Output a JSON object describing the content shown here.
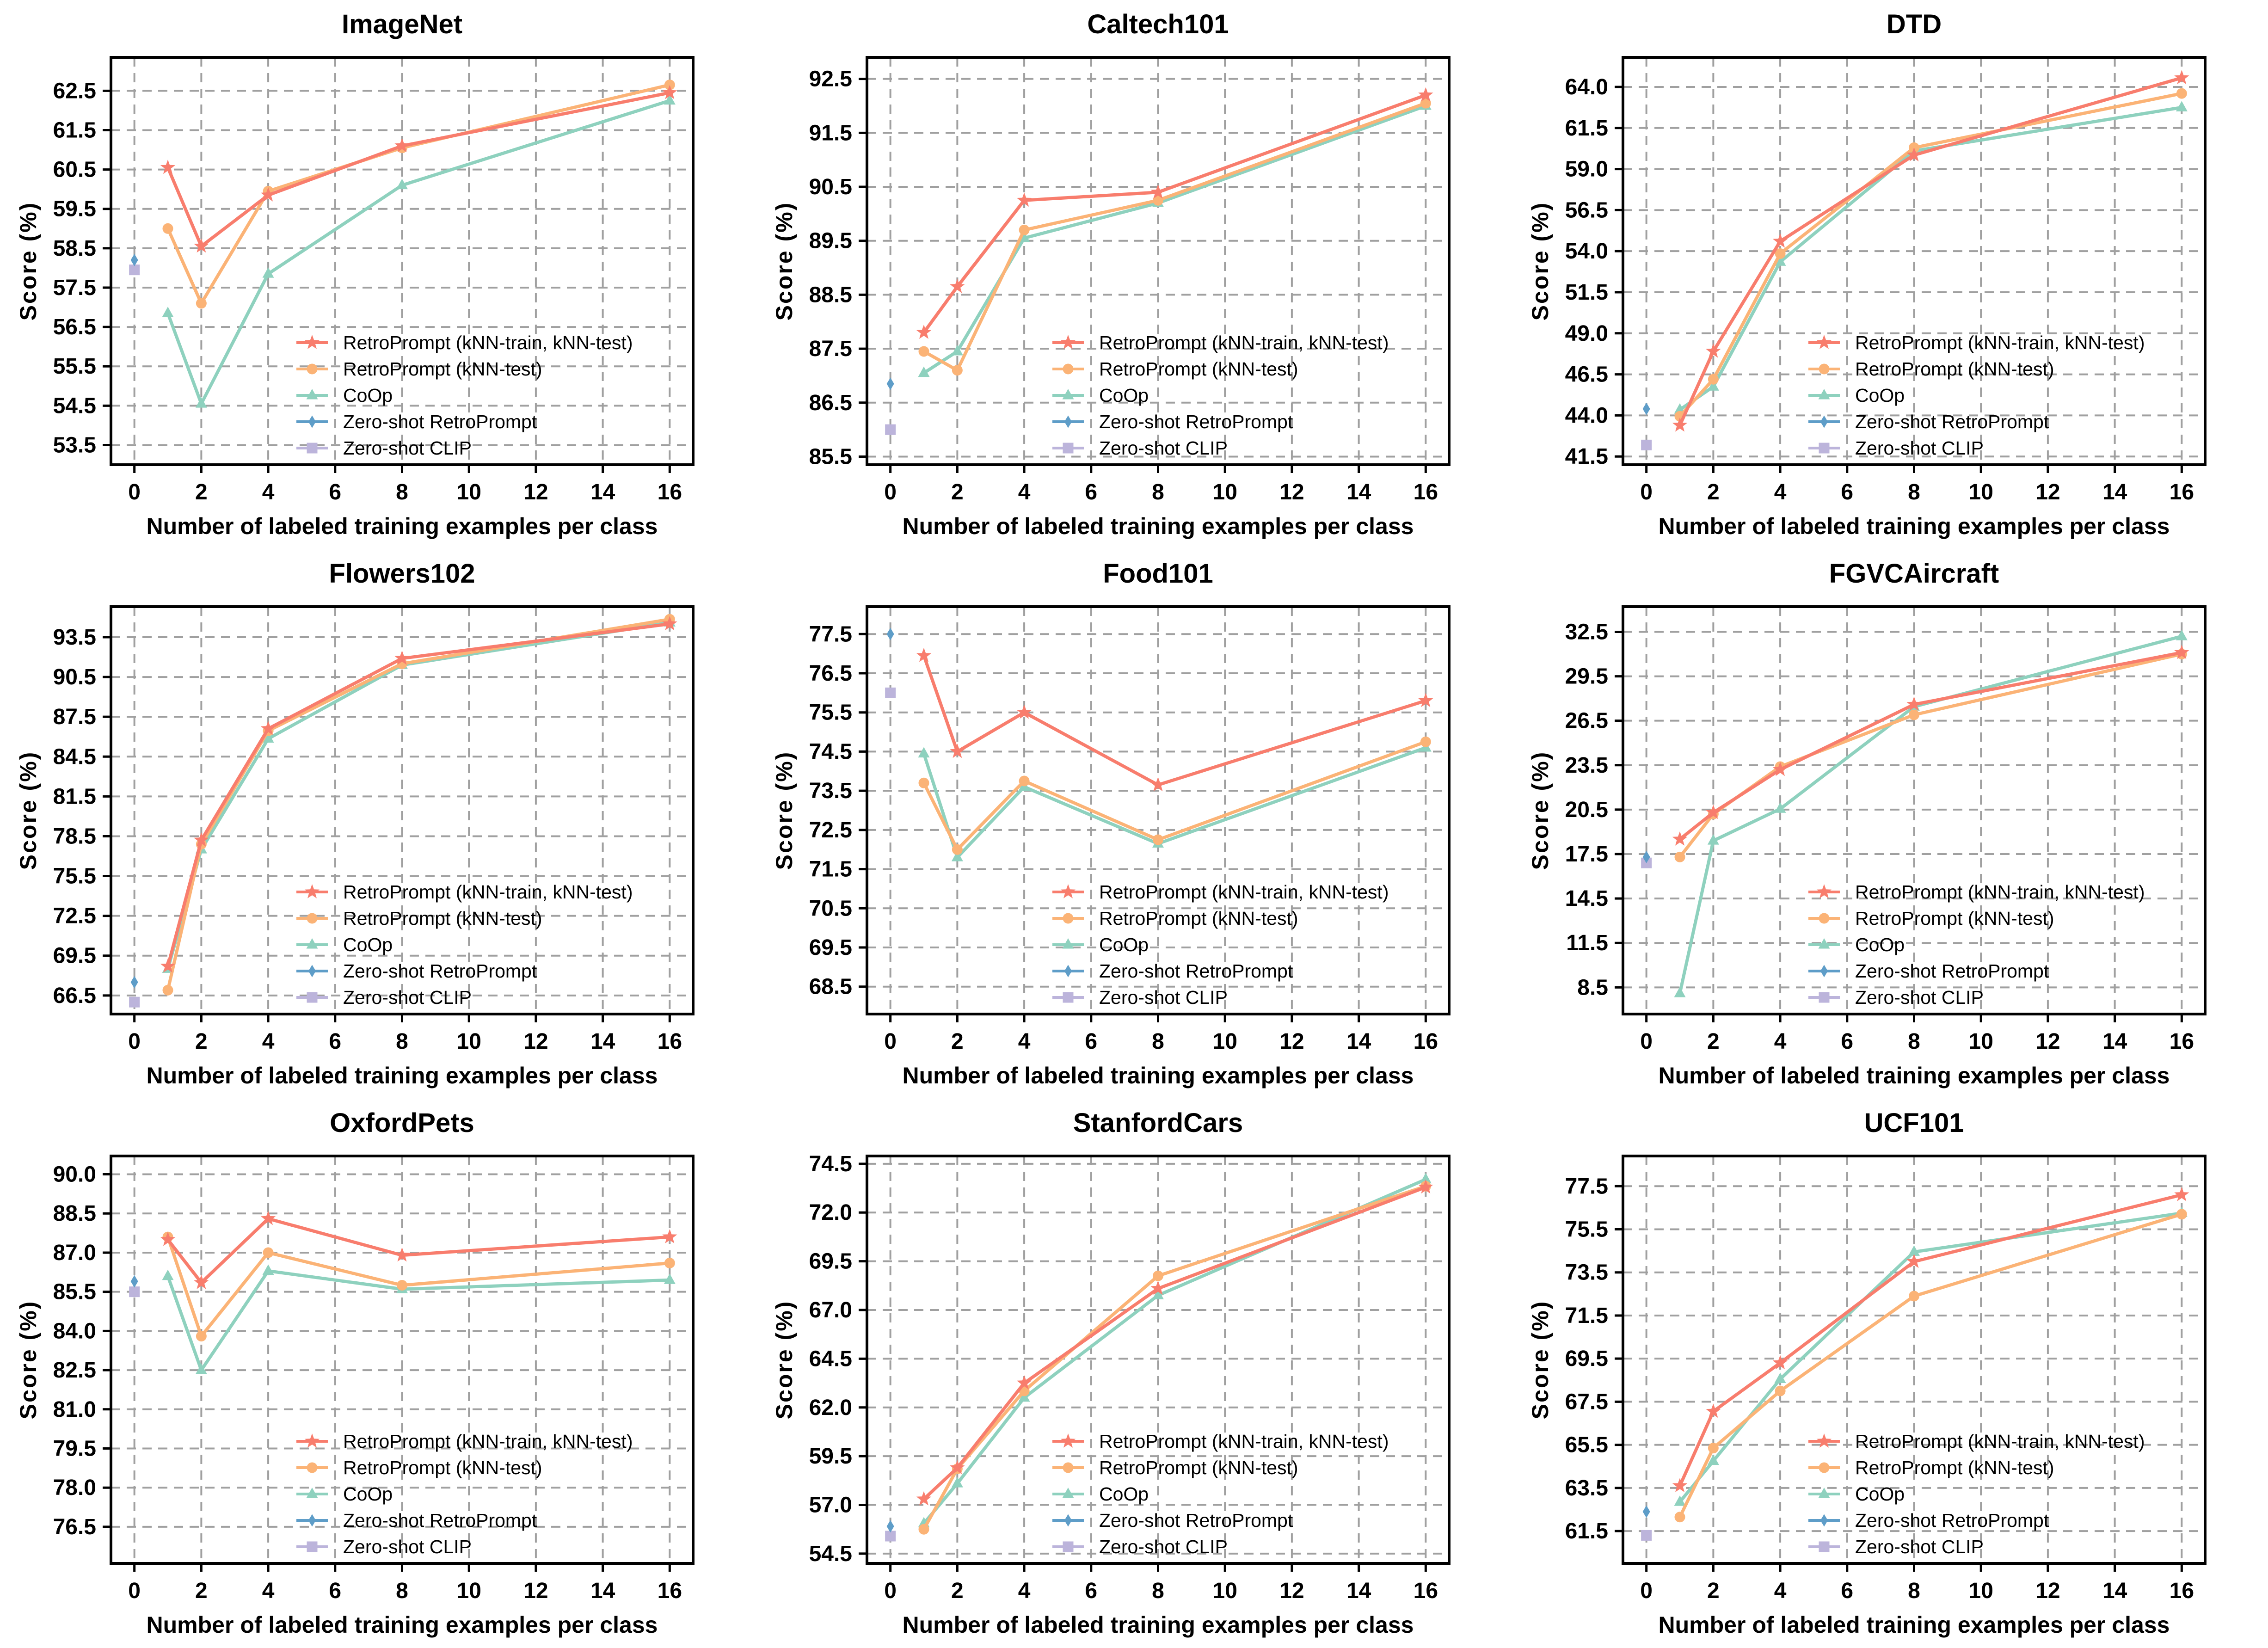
{
  "figure": {
    "background": "#ffffff",
    "grid_rows": 3,
    "grid_cols": 3
  },
  "chart_data": {
    "type": "line",
    "xlabel": "Number of labeled training examples per class",
    "ylabel": "Score (%)",
    "xticks": [
      0,
      2,
      4,
      6,
      8,
      10,
      12,
      14,
      16
    ],
    "xlim": [
      -0.7,
      16.7
    ],
    "shots_x": [
      1,
      2,
      4,
      8,
      16
    ],
    "zero_shot_x": 0,
    "grid_on": true,
    "grid_color": "#A0A0A0",
    "legend_position": "lower-right-inside",
    "series_defs": [
      {
        "id": "retro_tt",
        "label": "RetroPrompt (kNN-train, kNN-test)",
        "color": "#F87D6D",
        "marker": "star",
        "kind": "line"
      },
      {
        "id": "retro_t",
        "label": "RetroPrompt (kNN-test)",
        "color": "#FBB376",
        "marker": "circle",
        "kind": "line"
      },
      {
        "id": "coop",
        "label": "CoOp",
        "color": "#8ED1BE",
        "marker": "triangle",
        "kind": "line"
      },
      {
        "id": "zs_retro",
        "label": "Zero-shot RetroPrompt",
        "color": "#5E9DC8",
        "marker": "diamond",
        "kind": "point"
      },
      {
        "id": "zs_clip",
        "label": "Zero-shot CLIP",
        "color": "#BCB4DB",
        "marker": "square",
        "kind": "point"
      }
    ],
    "charts": [
      {
        "title": "ImageNet",
        "yticks": [
          "53.5",
          "54.5",
          "55.5",
          "56.5",
          "57.5",
          "58.5",
          "59.5",
          "60.5",
          "61.5",
          "62.5"
        ],
        "ylim": [
          53.0,
          63.35
        ],
        "values": {
          "retro_tt": [
            60.55,
            58.55,
            59.85,
            61.1,
            62.45
          ],
          "retro_t": [
            59.0,
            57.1,
            59.95,
            61.05,
            62.65
          ],
          "coop": [
            56.85,
            54.55,
            57.85,
            60.1,
            62.25
          ],
          "zs_retro": [
            58.2
          ],
          "zs_clip": [
            57.95
          ]
        }
      },
      {
        "title": "Caltech101",
        "yticks": [
          "85.5",
          "86.5",
          "87.5",
          "88.5",
          "89.5",
          "90.5",
          "91.5",
          "92.5"
        ],
        "ylim": [
          85.35,
          92.9
        ],
        "values": {
          "retro_tt": [
            87.8,
            88.65,
            90.25,
            90.4,
            92.2
          ],
          "retro_t": [
            87.45,
            87.1,
            89.7,
            90.25,
            92.05
          ],
          "coop": [
            87.05,
            87.45,
            89.55,
            90.2,
            92.0
          ],
          "zs_retro": [
            86.85
          ],
          "zs_clip": [
            86.0
          ]
        }
      },
      {
        "title": "DTD",
        "yticks": [
          "41.5",
          "44.0",
          "46.5",
          "49.0",
          "51.5",
          "54.0",
          "56.5",
          "59.0",
          "61.5",
          "64.0"
        ],
        "ylim": [
          41.0,
          65.8
        ],
        "values": {
          "retro_tt": [
            43.4,
            47.9,
            54.6,
            59.85,
            64.55
          ],
          "retro_t": [
            43.95,
            46.2,
            53.85,
            60.3,
            63.6
          ],
          "coop": [
            44.35,
            45.75,
            53.35,
            60.1,
            62.75
          ],
          "zs_retro": [
            44.4
          ],
          "zs_clip": [
            42.2
          ]
        }
      },
      {
        "title": "Flowers102",
        "yticks": [
          "66.5",
          "69.5",
          "72.5",
          "75.5",
          "78.5",
          "81.5",
          "84.5",
          "87.5",
          "90.5",
          "93.5"
        ],
        "ylim": [
          65.1,
          95.8
        ],
        "values": {
          "retro_tt": [
            68.7,
            78.2,
            86.6,
            91.9,
            94.5
          ],
          "retro_t": [
            66.9,
            77.9,
            86.45,
            91.5,
            94.85
          ],
          "coop": [
            68.5,
            77.5,
            85.85,
            91.4,
            94.6
          ],
          "zs_retro": [
            67.5
          ],
          "zs_clip": [
            66.0
          ]
        }
      },
      {
        "title": "Food101",
        "yticks": [
          "68.5",
          "69.5",
          "70.5",
          "71.5",
          "72.5",
          "73.5",
          "74.5",
          "75.5",
          "76.5",
          "77.5"
        ],
        "ylim": [
          67.8,
          78.2
        ],
        "values": {
          "retro_tt": [
            76.95,
            74.5,
            75.5,
            73.65,
            75.8
          ],
          "retro_t": [
            73.7,
            72.0,
            73.75,
            72.25,
            74.75
          ],
          "coop": [
            74.45,
            71.8,
            73.6,
            72.15,
            74.6
          ],
          "zs_retro": [
            77.5
          ],
          "zs_clip": [
            76.0
          ]
        }
      },
      {
        "title": "FGVCAircraft",
        "yticks": [
          "8.5",
          "11.5",
          "14.5",
          "17.5",
          "20.5",
          "23.5",
          "26.5",
          "29.5",
          "32.5"
        ],
        "ylim": [
          6.7,
          34.2
        ],
        "values": {
          "retro_tt": [
            18.5,
            20.3,
            23.2,
            27.6,
            31.1
          ],
          "retro_t": [
            17.3,
            20.2,
            23.4,
            26.9,
            31.0
          ],
          "coop": [
            8.1,
            18.4,
            20.55,
            27.45,
            32.2
          ],
          "zs_retro": [
            17.3
          ],
          "zs_clip": [
            16.9
          ]
        }
      },
      {
        "title": "OxfordPets",
        "yticks": [
          "76.5",
          "78.0",
          "79.5",
          "81.0",
          "82.5",
          "84.0",
          "85.5",
          "87.0",
          "88.5",
          "90.0"
        ],
        "ylim": [
          75.1,
          90.7
        ],
        "values": {
          "retro_tt": [
            87.5,
            85.85,
            88.3,
            86.9,
            87.6
          ],
          "retro_t": [
            87.6,
            83.8,
            87.0,
            85.75,
            86.6
          ],
          "coop": [
            86.1,
            82.5,
            86.3,
            85.6,
            85.95
          ],
          "zs_retro": [
            85.9
          ],
          "zs_clip": [
            85.5
          ]
        }
      },
      {
        "title": "StanfordCars",
        "yticks": [
          "54.5",
          "57.0",
          "59.5",
          "62.0",
          "64.5",
          "67.0",
          "69.5",
          "72.0",
          "74.5"
        ],
        "ylim": [
          54.0,
          74.9
        ],
        "values": {
          "retro_tt": [
            57.3,
            58.9,
            63.25,
            68.1,
            73.3
          ],
          "retro_t": [
            55.75,
            58.85,
            62.85,
            68.75,
            73.35
          ],
          "coop": [
            56.05,
            58.1,
            62.5,
            67.75,
            73.7
          ],
          "zs_retro": [
            55.9
          ],
          "zs_clip": [
            55.4
          ]
        }
      },
      {
        "title": "UCF101",
        "yticks": [
          "61.5",
          "63.5",
          "65.5",
          "67.5",
          "69.5",
          "71.5",
          "73.5",
          "75.5",
          "77.5"
        ],
        "ylim": [
          60.0,
          78.9
        ],
        "values": {
          "retro_tt": [
            63.6,
            67.05,
            69.3,
            74.0,
            77.1
          ],
          "retro_t": [
            62.15,
            65.35,
            68.0,
            72.4,
            76.2
          ],
          "coop": [
            62.85,
            64.75,
            68.55,
            74.45,
            76.25
          ],
          "zs_retro": [
            62.4
          ],
          "zs_clip": [
            61.3
          ]
        }
      }
    ]
  }
}
